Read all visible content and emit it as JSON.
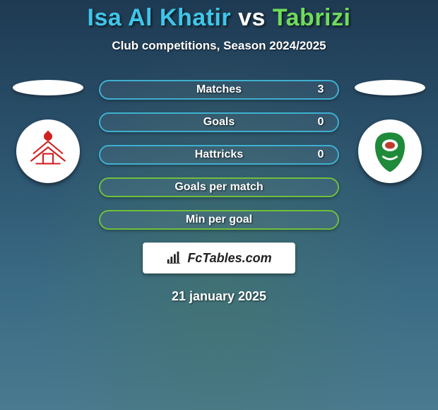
{
  "title": {
    "player_left": "Isa Al Khatir",
    "vs": "vs",
    "player_right": "Tabrizi",
    "left_color": "#3fc6e8",
    "right_color": "#6fdc5a"
  },
  "subtitle": "Club competitions, Season 2024/2025",
  "bars": [
    {
      "label": "Matches",
      "left": "",
      "right": "3"
    },
    {
      "label": "Goals",
      "left": "",
      "right": "0"
    },
    {
      "label": "Hattricks",
      "left": "",
      "right": "0"
    },
    {
      "label": "Goals per match",
      "left": "",
      "right": ""
    },
    {
      "label": "Min per goal",
      "left": "",
      "right": ""
    }
  ],
  "bar_style": {
    "border_color_top3": "#3fb0d0",
    "border_color_bot2": "#6fbf3f",
    "fill_color": "rgba(255,255,255,0.05)",
    "label_fontsize": 16
  },
  "site_label": "FcTables.com",
  "date_label": "21 january 2025",
  "clubs": {
    "left": {
      "name": "club-left",
      "primary": "#d02020"
    },
    "right": {
      "name": "club-right",
      "primary": "#1e8a3a",
      "secondary": "#c0392b"
    }
  }
}
